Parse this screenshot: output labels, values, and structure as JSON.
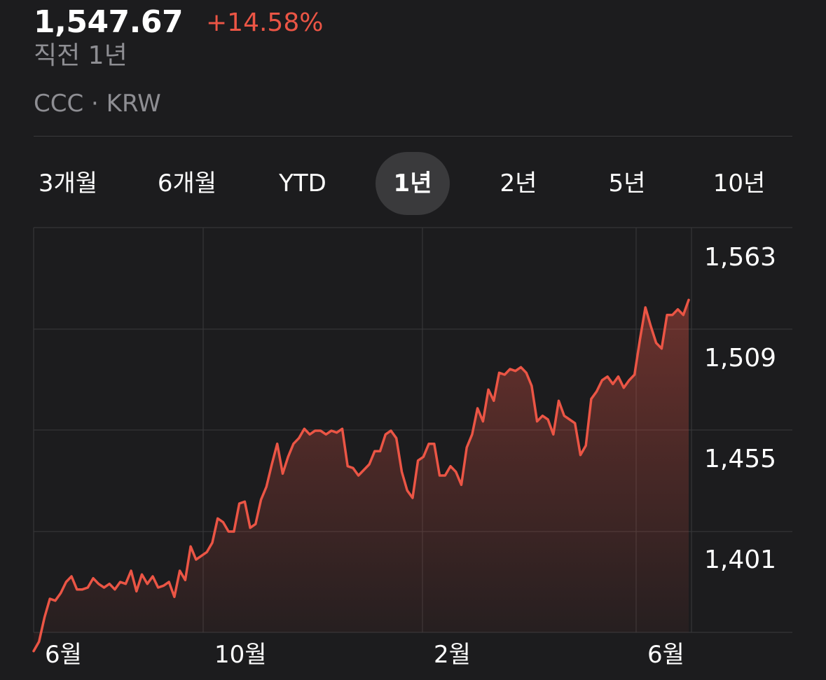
{
  "header": {
    "price": "1,547.67",
    "change": "+14.58%",
    "period_label": "직전 1년",
    "ticker": "CCC · KRW"
  },
  "range_tabs": [
    {
      "label": "3개월",
      "selected": false
    },
    {
      "label": "6개월",
      "selected": false
    },
    {
      "label": "YTD",
      "selected": false
    },
    {
      "label": "1년",
      "selected": true
    },
    {
      "label": "2년",
      "selected": false
    },
    {
      "label": "5년",
      "selected": false
    },
    {
      "label": "10년",
      "selected": false
    }
  ],
  "colors": {
    "line": "#eb5545",
    "fill": "#eb5545",
    "grid": "#3a3a3c",
    "background": "#1c1c1e"
  },
  "chart_data": {
    "type": "area",
    "title": "",
    "xlabel": "",
    "ylabel": "",
    "x_tick_labels": [
      "6월",
      "10월",
      "2월",
      "6월"
    ],
    "y_tick_labels": [
      "1,563",
      "1,509",
      "1,455",
      "1,401"
    ],
    "y_ticks": [
      1563,
      1509,
      1455,
      1401
    ],
    "ylim": [
      1347,
      1563
    ],
    "grid": true,
    "series": [
      {
        "values": [
          1352,
          1357,
          1370,
          1380,
          1379,
          1383,
          1389,
          1392,
          1385,
          1385,
          1386,
          1391,
          1388,
          1386,
          1388,
          1385,
          1389,
          1388,
          1395,
          1384,
          1393,
          1388,
          1392,
          1386,
          1387,
          1389,
          1381,
          1395,
          1390,
          1408,
          1401,
          1403,
          1405,
          1410,
          1423,
          1421,
          1416,
          1416,
          1431,
          1432,
          1418,
          1420,
          1433,
          1440,
          1452,
          1463,
          1447,
          1456,
          1463,
          1466,
          1471,
          1468,
          1470,
          1470,
          1468,
          1470,
          1469,
          1471,
          1451,
          1450,
          1446,
          1449,
          1452,
          1459,
          1459,
          1468,
          1470,
          1466,
          1448,
          1438,
          1434,
          1454,
          1456,
          1463,
          1463,
          1446,
          1446,
          1451,
          1448,
          1441,
          1461,
          1468,
          1482,
          1475,
          1492,
          1486,
          1501,
          1500,
          1503,
          1502,
          1504,
          1501,
          1494,
          1475,
          1478,
          1476,
          1468,
          1486,
          1478,
          1476,
          1474,
          1457,
          1462,
          1487,
          1491,
          1497,
          1499,
          1495,
          1499,
          1493,
          1497,
          1500,
          1519,
          1536,
          1526,
          1517,
          1514,
          1532,
          1532,
          1535,
          1532,
          1540
        ]
      }
    ]
  }
}
